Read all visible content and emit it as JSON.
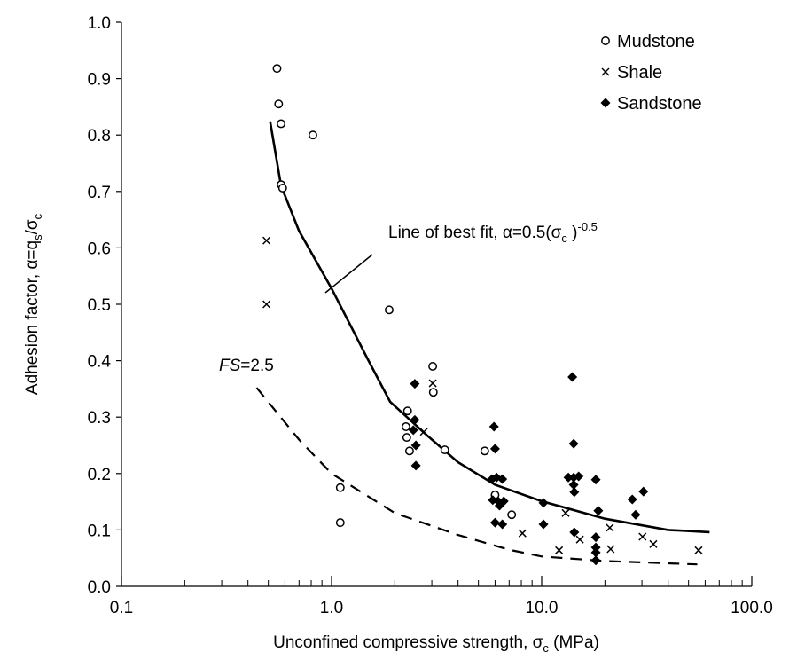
{
  "chart_data": {
    "type": "scatter",
    "title": "",
    "xlabel_parts": [
      {
        "t": "Unconfined compressive strength, σ"
      },
      {
        "t": "c",
        "sub": true
      },
      {
        "t": " (MPa)"
      }
    ],
    "ylabel_parts": [
      {
        "t": "Adhesion factor, α=q"
      },
      {
        "t": "s",
        "sub": true
      },
      {
        "t": "/σ"
      },
      {
        "t": "c",
        "sub": true
      }
    ],
    "x_scale": "log",
    "xlim": [
      0.1,
      100
    ],
    "ylim": [
      0,
      1.0
    ],
    "x_ticks": [
      "0.1",
      "1.0",
      "10.0",
      "100.0"
    ],
    "y_ticks": [
      "0.0",
      "0.1",
      "0.2",
      "0.3",
      "0.4",
      "0.5",
      "0.6",
      "0.7",
      "0.8",
      "0.9",
      "1.0"
    ],
    "grid": false,
    "legend_position": "top-right",
    "series": [
      {
        "name": "Mudstone",
        "marker": "open-circle",
        "points": [
          [
            0.55,
            0.918
          ],
          [
            0.56,
            0.855
          ],
          [
            0.575,
            0.82
          ],
          [
            0.815,
            0.8
          ],
          [
            0.575,
            0.712
          ],
          [
            0.585,
            0.706
          ],
          [
            1.88,
            0.49
          ],
          [
            1.1,
            0.175
          ],
          [
            1.1,
            0.113
          ],
          [
            3.03,
            0.39
          ],
          [
            3.05,
            0.344
          ],
          [
            2.3,
            0.311
          ],
          [
            2.26,
            0.283
          ],
          [
            2.28,
            0.264
          ],
          [
            2.35,
            0.24
          ],
          [
            3.46,
            0.242
          ],
          [
            5.36,
            0.24
          ],
          [
            6.0,
            0.162
          ],
          [
            7.2,
            0.127
          ]
        ]
      },
      {
        "name": "Shale",
        "marker": "cross",
        "points": [
          [
            0.49,
            0.613
          ],
          [
            0.49,
            0.5
          ],
          [
            3.03,
            0.36
          ],
          [
            2.75,
            0.274
          ],
          [
            8.1,
            0.094
          ],
          [
            12.1,
            0.064
          ],
          [
            13.0,
            0.13
          ],
          [
            15.2,
            0.083
          ],
          [
            21.1,
            0.104
          ],
          [
            21.3,
            0.066
          ],
          [
            30.2,
            0.088
          ],
          [
            34,
            0.075
          ],
          [
            55.8,
            0.064
          ]
        ]
      },
      {
        "name": "Sandstone",
        "marker": "filled-diamond",
        "points": [
          [
            2.49,
            0.359
          ],
          [
            2.49,
            0.295
          ],
          [
            2.45,
            0.277
          ],
          [
            2.52,
            0.25
          ],
          [
            2.52,
            0.214
          ],
          [
            5.93,
            0.283
          ],
          [
            6.0,
            0.244
          ],
          [
            5.8,
            0.19
          ],
          [
            6.1,
            0.193
          ],
          [
            6.5,
            0.19
          ],
          [
            5.85,
            0.153
          ],
          [
            6.2,
            0.151
          ],
          [
            6.6,
            0.151
          ],
          [
            6.3,
            0.143
          ],
          [
            6.0,
            0.113
          ],
          [
            6.5,
            0.11
          ],
          [
            10.2,
            0.148
          ],
          [
            10.2,
            0.11
          ],
          [
            14.0,
            0.371
          ],
          [
            14.2,
            0.253
          ],
          [
            13.4,
            0.193
          ],
          [
            14.2,
            0.193
          ],
          [
            15.0,
            0.195
          ],
          [
            14.2,
            0.18
          ],
          [
            14.3,
            0.167
          ],
          [
            18.1,
            0.189
          ],
          [
            18.6,
            0.134
          ],
          [
            14.3,
            0.096
          ],
          [
            18.1,
            0.087
          ],
          [
            18.1,
            0.069
          ],
          [
            18.1,
            0.06
          ],
          [
            18.1,
            0.046
          ],
          [
            27,
            0.154
          ],
          [
            30.5,
            0.168
          ],
          [
            28,
            0.127
          ]
        ]
      }
    ],
    "curves": [
      {
        "id": "best-fit",
        "style": "solid",
        "points": [
          [
            0.51,
            0.824
          ],
          [
            0.575,
            0.71
          ],
          [
            0.7,
            0.63
          ],
          [
            1.0,
            0.528
          ],
          [
            1.5,
            0.4
          ],
          [
            1.9,
            0.327
          ],
          [
            2.8,
            0.27
          ],
          [
            4,
            0.22
          ],
          [
            6,
            0.18
          ],
          [
            10,
            0.151
          ],
          [
            20,
            0.12
          ],
          [
            40,
            0.1
          ],
          [
            63,
            0.096
          ]
        ]
      },
      {
        "id": "fs-2.5",
        "style": "dashed",
        "points": [
          [
            0.44,
            0.352
          ],
          [
            0.7,
            0.26
          ],
          [
            1.0,
            0.2
          ],
          [
            2,
            0.13
          ],
          [
            4,
            0.091
          ],
          [
            7,
            0.065
          ],
          [
            10,
            0.053
          ],
          [
            20,
            0.045
          ],
          [
            55,
            0.039
          ]
        ]
      }
    ],
    "annotations": {
      "best_fit_label": {
        "main": "Line of best fit, α=0.5(σ",
        "sub": "c",
        "after": " )",
        "sup": "-0.5"
      },
      "fs_label": {
        "italic": "FS",
        "rest": "=2.5"
      }
    }
  }
}
